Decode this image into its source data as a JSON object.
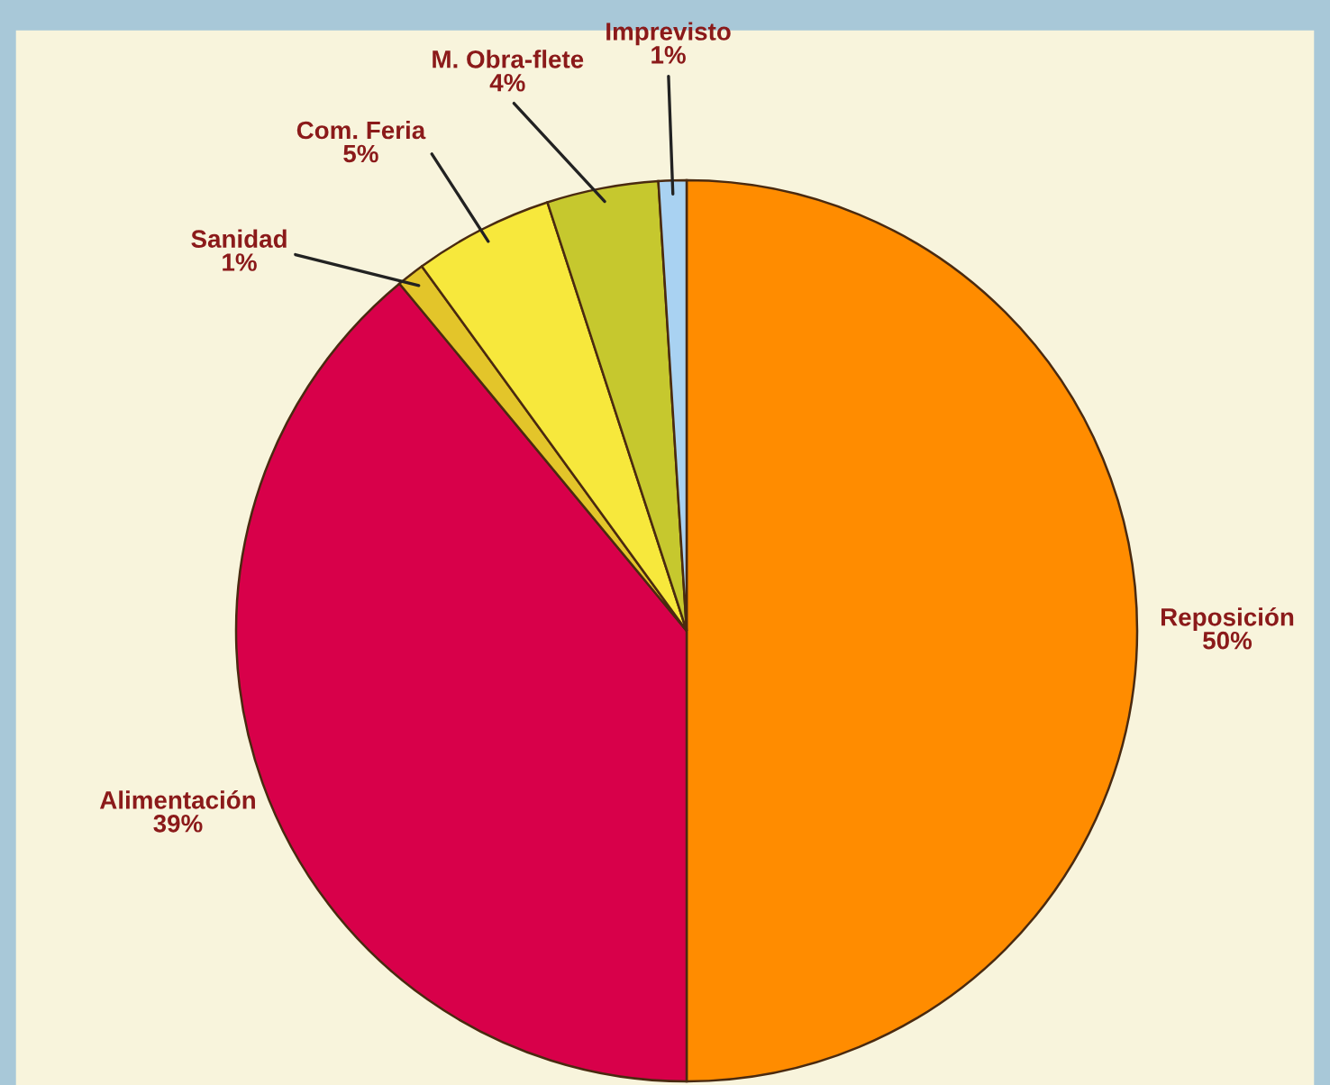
{
  "chart_data": {
    "type": "pie",
    "categories": [
      "Reposición",
      "Alimentación",
      "Sanidad",
      "Com. Feria",
      "M. Obra-flete",
      "Imprevisto"
    ],
    "values": [
      50,
      39,
      1,
      5,
      4,
      1
    ],
    "colors": [
      "#ff8c00",
      "#d8004a",
      "#e3c52a",
      "#f7e83c",
      "#c6c82e",
      "#a9d2f2"
    ],
    "value_labels": [
      "50%",
      "39%",
      "1%",
      "5%",
      "4%",
      "1%"
    ]
  }
}
